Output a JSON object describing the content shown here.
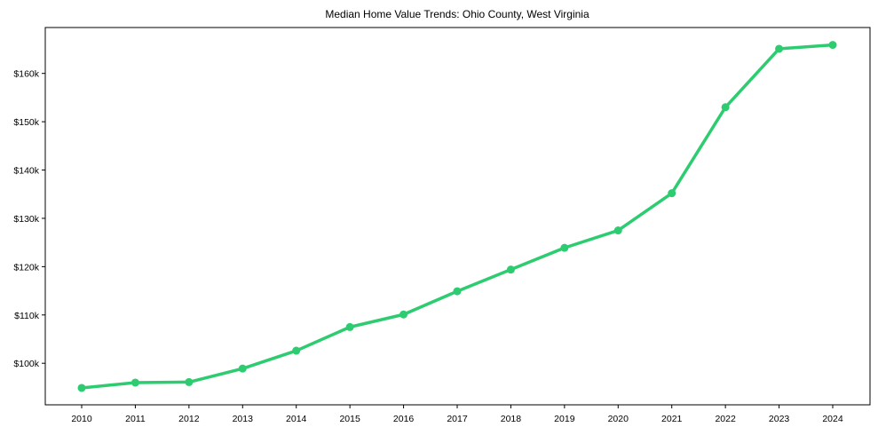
{
  "chart_data": {
    "type": "line",
    "title": "Median Home Value Trends: Ohio County, West Virginia",
    "xlabel": "",
    "ylabel": "",
    "categories": [
      "2010",
      "2011",
      "2012",
      "2013",
      "2014",
      "2015",
      "2016",
      "2017",
      "2018",
      "2019",
      "2020",
      "2021",
      "2022",
      "2023",
      "2024"
    ],
    "series": [
      {
        "name": "Median Home Value",
        "color": "#2ecc71",
        "values": [
          94900,
          96000,
          96100,
          98900,
          102600,
          107500,
          110100,
          114900,
          119400,
          123900,
          127500,
          135200,
          153000,
          165100,
          165900
        ]
      }
    ],
    "yticks": [
      100000,
      110000,
      120000,
      130000,
      140000,
      150000,
      160000
    ],
    "ytick_labels": [
      "$100k",
      "$110k",
      "$120k",
      "$130k",
      "$140k",
      "$150k",
      "$160k"
    ],
    "ylim": [
      91400,
      169500
    ],
    "grid": false,
    "legend": "none"
  },
  "style": {
    "line_color": "#2ecc71",
    "axis_color": "#000000"
  }
}
